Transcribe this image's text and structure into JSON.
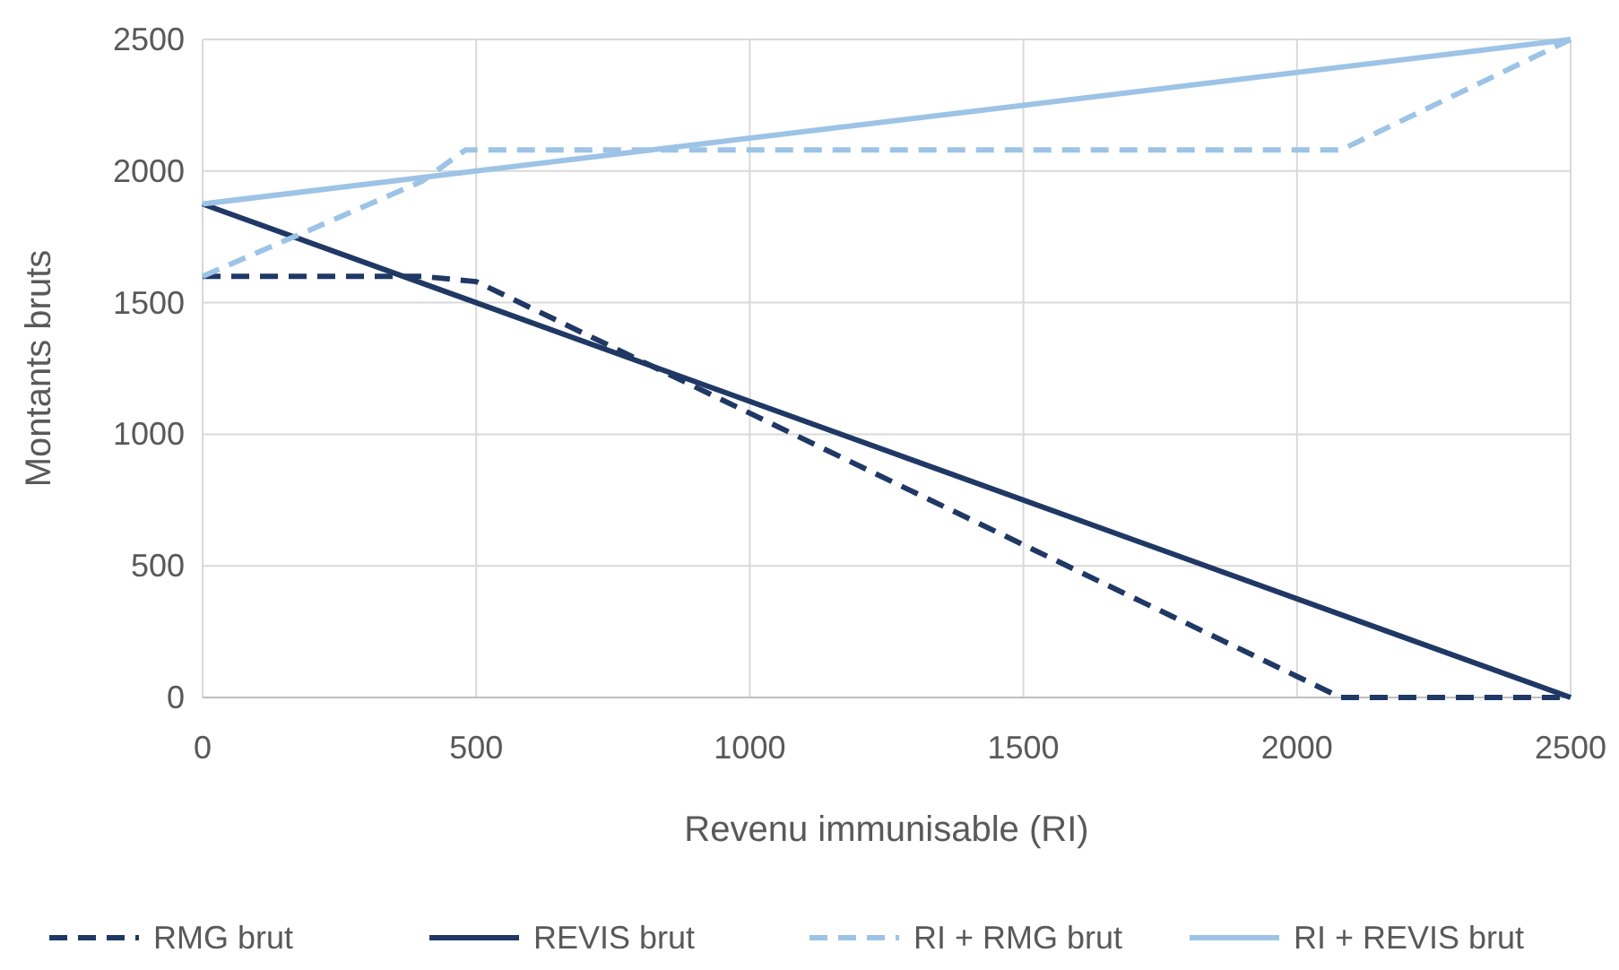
{
  "chart_data": {
    "type": "line",
    "xlabel": "Revenu immunisable (RI)",
    "ylabel": "Montants bruts",
    "xlim": [
      0,
      2500
    ],
    "ylim": [
      0,
      2500
    ],
    "xticks": [
      0,
      500,
      1000,
      1500,
      2000,
      2500
    ],
    "yticks": [
      0,
      500,
      1000,
      1500,
      2000,
      2500
    ],
    "grid": true,
    "legend": "bottom",
    "series": [
      {
        "name": "RMG brut",
        "color": "#203864",
        "line_style": "dashed",
        "x": [
          0,
          400,
          500,
          1000,
          1500,
          2000,
          2080,
          2500
        ],
        "values": [
          1600,
          1600,
          1580,
          1080,
          580,
          80,
          0,
          0
        ]
      },
      {
        "name": "REVIS brut",
        "color": "#203864",
        "line_style": "solid",
        "x": [
          0,
          2500
        ],
        "values": [
          1875,
          0
        ]
      },
      {
        "name": "RI + RMG brut",
        "color": "#9dc3e6",
        "line_style": "dashed",
        "x": [
          0,
          400,
          480,
          2080,
          2500
        ],
        "values": [
          1600,
          1960,
          2080,
          2080,
          2500
        ]
      },
      {
        "name": "RI + REVIS brut",
        "color": "#9dc3e6",
        "line_style": "solid",
        "x": [
          0,
          2500
        ],
        "values": [
          1875,
          2500
        ]
      }
    ]
  }
}
